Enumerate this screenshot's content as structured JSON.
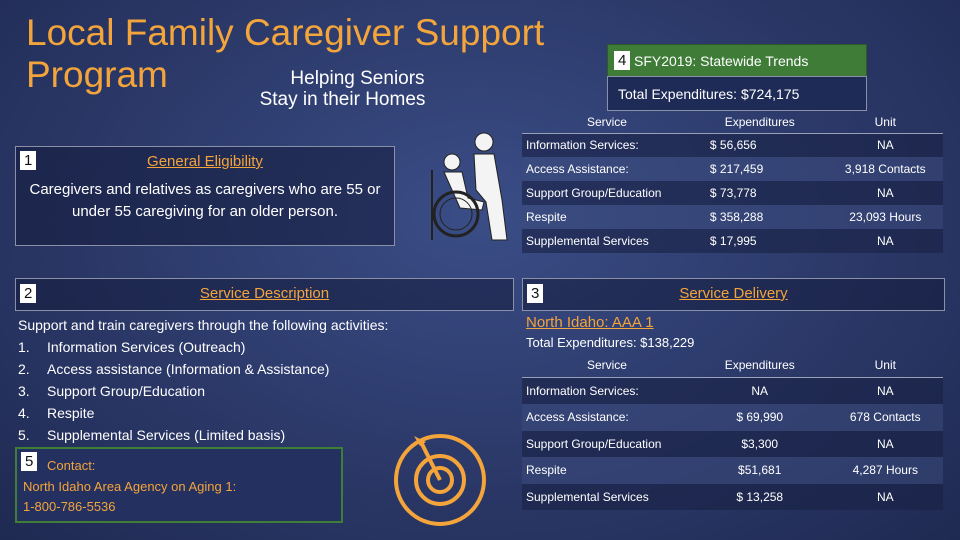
{
  "header": {
    "title_line1": "Local Family Caregiver Support",
    "title_line2": "Program",
    "subtitle_line1": "Helping Seniors",
    "subtitle_line2": "Stay in their Homes"
  },
  "eligibility": {
    "number": "1",
    "heading": "General Eligibility",
    "text": "Caregivers and relatives as caregivers who are 55 or under 55 caregiving for an older person."
  },
  "description": {
    "number": "2",
    "heading": "Service Description",
    "intro": "Support and train caregivers through the following activities:",
    "markers": [
      "1.",
      "2.",
      "3.",
      "4.",
      "5."
    ],
    "items": [
      "Information Services (Outreach)",
      "Access assistance (Information & Assistance)",
      "Support Group/Education",
      "Respite",
      "Supplemental Services (Limited basis)"
    ]
  },
  "contact": {
    "number": "5",
    "heading": "Contact:",
    "lines": [
      "North Idaho Area Agency on Aging 1:",
      "1-800-786-5536"
    ]
  },
  "statewide": {
    "number": "4",
    "heading": "SFY2019: Statewide Trends",
    "total": "Total Expenditures: $724,175",
    "table": {
      "headers": [
        "Service",
        "Expenditures",
        "Unit"
      ],
      "rows": [
        [
          "Information Services:",
          "$  56,656",
          "NA"
        ],
        [
          "Access Assistance:",
          "$ 217,459",
          "3,918 Contacts"
        ],
        [
          "Support Group/Education",
          "$  73,778",
          "NA"
        ],
        [
          "Respite",
          "$ 358,288",
          "23,093 Hours"
        ],
        [
          "Supplemental Services",
          "$  17,995",
          "NA"
        ]
      ]
    }
  },
  "delivery": {
    "number": "3",
    "heading": "Service Delivery",
    "region": "North Idaho: AAA 1",
    "total": "Total Expenditures: $138,229",
    "table": {
      "headers": [
        "Service",
        "Expenditures",
        "Unit"
      ],
      "rows": [
        [
          "Information Services:",
          "NA",
          "NA"
        ],
        [
          "Access Assistance:",
          "$ 69,990",
          "678 Contacts"
        ],
        [
          "Support Group/Education",
          "$3,300",
          "NA"
        ],
        [
          "Respite",
          "$51,681",
          "4,287 Hours"
        ],
        [
          "Supplemental Services",
          "$ 13,258",
          "NA"
        ]
      ]
    }
  }
}
